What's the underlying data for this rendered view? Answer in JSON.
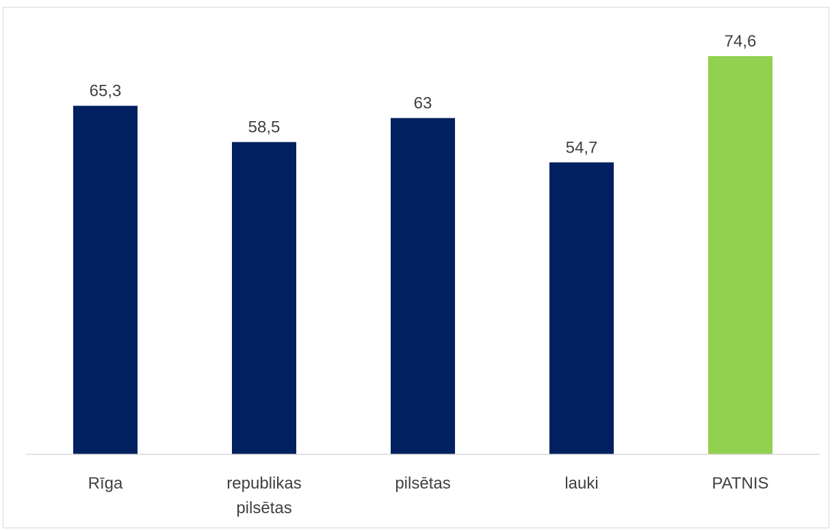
{
  "chart_data": {
    "type": "bar",
    "categories": [
      [
        "Rīga"
      ],
      [
        "republikas",
        "pilsētas"
      ],
      [
        "pilsētas"
      ],
      [
        "lauki"
      ],
      [
        "PATNIS"
      ]
    ],
    "values": [
      65.3,
      58.5,
      63,
      54.7,
      74.6
    ],
    "value_labels": [
      "65,3",
      "58,5",
      "63",
      "54,7",
      "74,6"
    ],
    "colors": [
      "#002060",
      "#002060",
      "#002060",
      "#002060",
      "#92d050"
    ],
    "ylim": [
      0,
      80
    ],
    "axis_color": "#d9d9d9",
    "grid": false,
    "title": "",
    "xlabel": "",
    "ylabel": ""
  }
}
